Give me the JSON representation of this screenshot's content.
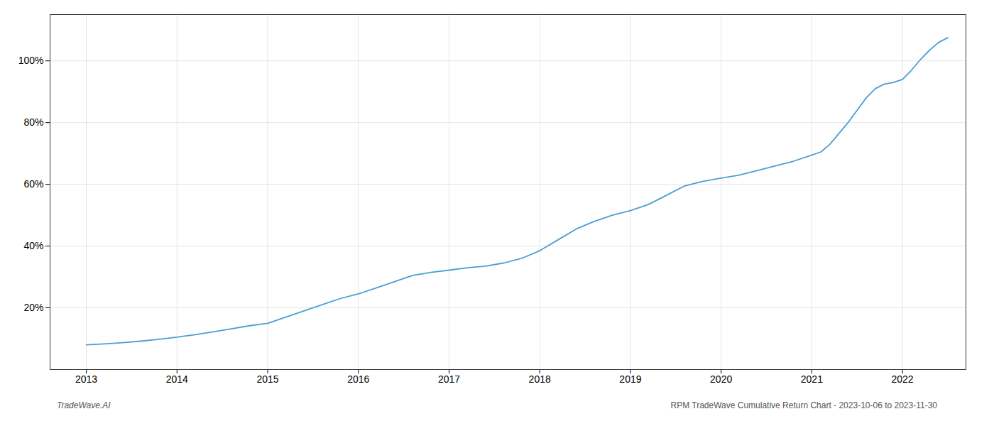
{
  "chart_data": {
    "type": "line",
    "color": "#4a9fd4",
    "grid": true,
    "annotations": [
      "TradeWave.AI",
      "RPM TradeWave Cumulative Return Chart - 2023-10-06 to 2023-11-30"
    ],
    "x": [
      2013.0,
      2013.2,
      2013.4,
      2013.6,
      2013.8,
      2014.0,
      2014.2,
      2014.4,
      2014.6,
      2014.8,
      2015.0,
      2015.2,
      2015.4,
      2015.6,
      2015.8,
      2016.0,
      2016.2,
      2016.4,
      2016.6,
      2016.8,
      2017.0,
      2017.2,
      2017.4,
      2017.6,
      2017.8,
      2018.0,
      2018.2,
      2018.4,
      2018.6,
      2018.8,
      2019.0,
      2019.2,
      2019.4,
      2019.6,
      2019.8,
      2020.0,
      2020.2,
      2020.4,
      2020.6,
      2020.8,
      2021.0,
      2021.1,
      2021.2,
      2021.3,
      2021.4,
      2021.5,
      2021.6,
      2021.7,
      2021.8,
      2021.9,
      2022.0,
      2022.1,
      2022.2,
      2022.3,
      2022.4,
      2022.5
    ],
    "values": [
      8.0,
      8.3,
      8.7,
      9.2,
      9.8,
      10.5,
      11.3,
      12.2,
      13.2,
      14.2,
      15.0,
      17.0,
      19.0,
      21.0,
      23.0,
      24.5,
      26.5,
      28.5,
      30.5,
      31.5,
      32.2,
      33.0,
      33.5,
      34.5,
      36.0,
      38.5,
      42.0,
      45.5,
      48.0,
      50.0,
      51.5,
      53.5,
      56.5,
      59.5,
      61.0,
      62.0,
      63.0,
      64.5,
      66.0,
      67.5,
      69.5,
      70.5,
      73.0,
      76.5,
      80.0,
      84.0,
      88.0,
      91.0,
      92.5,
      93.0,
      94.0,
      97.0,
      100.5,
      103.5,
      106.0,
      107.5
    ],
    "xlim": [
      2012.6,
      2022.7
    ],
    "xticks": [
      2013,
      2014,
      2015,
      2016,
      2017,
      2018,
      2019,
      2020,
      2021,
      2022
    ],
    "ylim": [
      0,
      115
    ],
    "yticks": [
      {
        "value": 20,
        "label": "20%"
      },
      {
        "value": 40,
        "label": "40%"
      },
      {
        "value": 60,
        "label": "60%"
      },
      {
        "value": 80,
        "label": "80%"
      },
      {
        "value": 100,
        "label": "100%"
      }
    ]
  }
}
